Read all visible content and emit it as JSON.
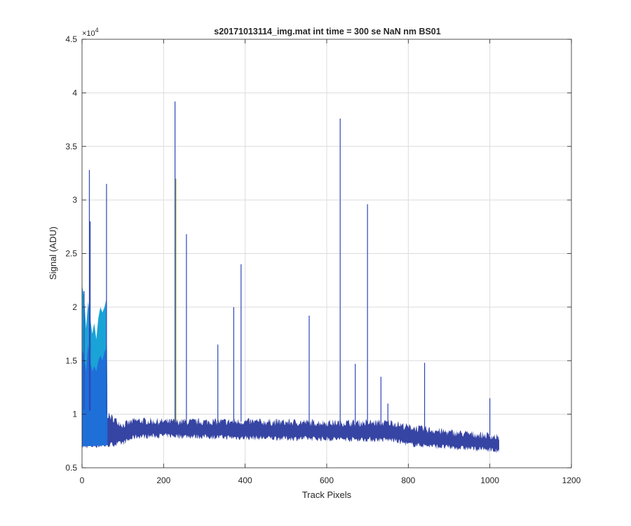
{
  "chart_data": {
    "type": "area",
    "title": "s20171013114_img.mat int time = 300 se  NaN nm BS01",
    "xlabel": "Track Pixels",
    "ylabel": "Signal (ADU)",
    "exponent_label": "×10",
    "exponent_power": "4",
    "xlim": [
      0,
      1200
    ],
    "ylim": [
      5000,
      45000
    ],
    "xticks": [
      0,
      200,
      400,
      600,
      800,
      1000,
      1200
    ],
    "yticks": [
      5000,
      10000,
      15000,
      20000,
      25000,
      30000,
      35000,
      40000,
      45000
    ],
    "xtick_labels": [
      "0",
      "200",
      "400",
      "600",
      "800",
      "1000",
      "1200"
    ],
    "ytick_labels": [
      "0.5",
      "1",
      "1.5",
      "2",
      "2.5",
      "3",
      "3.5",
      "4",
      "4.5"
    ],
    "grid": true,
    "baseline": {
      "x": [
        0,
        60,
        100,
        130,
        200,
        400,
        600,
        760,
        800,
        900,
        1000,
        1024
      ],
      "low": [
        7000,
        7100,
        7300,
        7900,
        8000,
        7800,
        7700,
        7600,
        7200,
        6900,
        6700,
        6500
      ],
      "high": [
        10500,
        10000,
        9000,
        9400,
        9300,
        9300,
        9200,
        9200,
        8800,
        8300,
        8000,
        7800
      ]
    },
    "bright_region": {
      "x": [
        0,
        5,
        10,
        15,
        20,
        25,
        30,
        35,
        40,
        45,
        50,
        55,
        60,
        62
      ],
      "top": [
        22000,
        21000,
        18000,
        20500,
        19000,
        17500,
        18500,
        17000,
        19000,
        20000,
        19500,
        20000,
        20800,
        12500
      ],
      "mid": [
        16000,
        15500,
        14000,
        16500,
        15000,
        14000,
        14500,
        14000,
        15000,
        15500,
        15000,
        15800,
        16200,
        10000
      ]
    },
    "spikes": [
      {
        "x": 5,
        "y": 21500
      },
      {
        "x": 18,
        "y": 32800
      },
      {
        "x": 20,
        "y": 28000
      },
      {
        "x": 60,
        "y": 31500
      },
      {
        "x": 228,
        "y": 39200
      },
      {
        "x": 230,
        "y": 32000
      },
      {
        "x": 256,
        "y": 26800
      },
      {
        "x": 333,
        "y": 16500
      },
      {
        "x": 372,
        "y": 20000
      },
      {
        "x": 390,
        "y": 24000
      },
      {
        "x": 557,
        "y": 19200
      },
      {
        "x": 633,
        "y": 37600
      },
      {
        "x": 670,
        "y": 14700
      },
      {
        "x": 700,
        "y": 29600
      },
      {
        "x": 733,
        "y": 13500
      },
      {
        "x": 750,
        "y": 11000
      },
      {
        "x": 840,
        "y": 14800
      },
      {
        "x": 1000,
        "y": 11500
      }
    ],
    "colors": {
      "baseline": "#2b3a9e",
      "bright_top": "#1aa3d6",
      "bright_mid": "#1f6fd8",
      "spike": "#2f46b8",
      "spike_alt": "#7a8a2a",
      "grid": "#dcdcdc",
      "axis": "#262626"
    }
  }
}
